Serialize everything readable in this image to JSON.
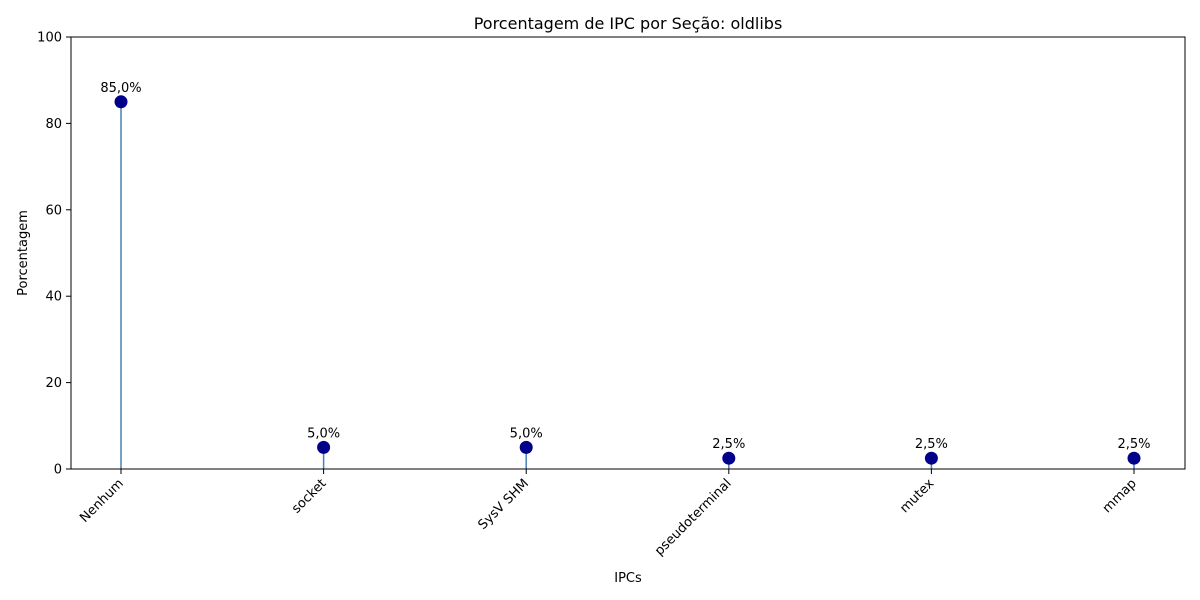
{
  "chart_data": {
    "type": "lollipop",
    "title": "Porcentagem de IPC por Seção: oldlibs",
    "xlabel": "IPCs",
    "ylabel": "Porcentagem",
    "categories": [
      "Nenhum",
      "socket",
      "SysV SHM",
      "pseudoterminal",
      "mutex",
      "mmap"
    ],
    "values": [
      85.0,
      5.0,
      5.0,
      2.5,
      2.5,
      2.5
    ],
    "value_labels": [
      "85,0%",
      "5,0%",
      "5,0%",
      "2,5%",
      "2,5%",
      "2,5%"
    ],
    "ylim": [
      0,
      100
    ],
    "yticks": [
      "0",
      "20",
      "40",
      "60",
      "80",
      "100"
    ],
    "grid": false,
    "legend": "none",
    "colors": {
      "marker": "#00008b",
      "stem": "#4682b4",
      "axis": "#000000"
    }
  }
}
